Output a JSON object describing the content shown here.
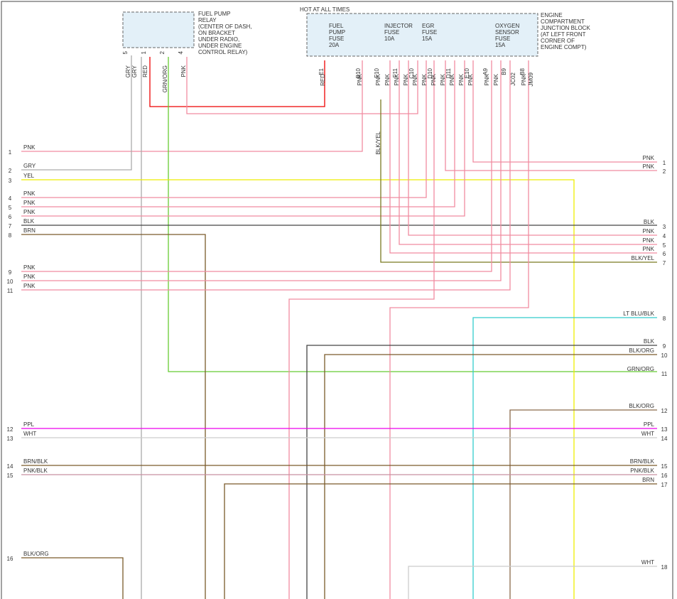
{
  "relay": {
    "lines": [
      "FUEL PUMP",
      "RELAY",
      "(CENTER OF DASH,",
      "ON BRACKET",
      "UNDER RADIO,",
      "UNDER ENGINE",
      "CONTROL RELAY)"
    ],
    "pins": [
      "5",
      "1",
      "2",
      "4"
    ],
    "wires": [
      "GRY",
      "GRY",
      "RED",
      "GRN/ORG",
      "PNK"
    ]
  },
  "junction": {
    "header": "HOT AT ALL TIMES",
    "lines": [
      "ENGINE",
      "COMPARTMENT",
      "JUNCTION BLOCK",
      "(AT LEFT FRONT",
      "CORNER OF",
      "ENGINE COMPT)"
    ],
    "fuses": [
      [
        "FUEL",
        "PUMP",
        "FUSE",
        "20A"
      ],
      [
        "INJECTOR",
        "FUSE",
        "10A"
      ],
      [
        "EGR",
        "FUSE",
        "15A"
      ],
      [
        "OXYGEN",
        "SENSOR",
        "FUSE",
        "15A"
      ]
    ],
    "pins": [
      "E1",
      "B10",
      "F10",
      "F11",
      "C10",
      "D10",
      "D11",
      "E10",
      "A9",
      "B9",
      "B8"
    ],
    "connectors": [
      "JC02",
      "JM09"
    ],
    "wires": [
      "RED",
      "PNK",
      "PNK",
      "PNK",
      "PNK",
      "PNK",
      "PNK",
      "PNK",
      "PNK",
      "PNK",
      "PNK",
      "PNK",
      "PNK",
      "PNK",
      "PNK",
      "PNK"
    ],
    "splice_wire": "BLK/YEL"
  },
  "left": [
    [
      "1",
      "PNK"
    ],
    [
      "2",
      "GRY"
    ],
    [
      "3",
      "YEL"
    ],
    [
      "4",
      "PNK"
    ],
    [
      "5",
      "PNK"
    ],
    [
      "6",
      "PNK"
    ],
    [
      "7",
      "BLK"
    ],
    [
      "8",
      "BRN"
    ],
    [
      "9",
      "PNK"
    ],
    [
      "10",
      "PNK"
    ],
    [
      "11",
      "PNK"
    ],
    [
      "12",
      "PPL"
    ],
    [
      "13",
      "WHT"
    ],
    [
      "14",
      "BRN/BLK"
    ],
    [
      "15",
      "PNK/BLK"
    ],
    [
      "16",
      "BLK/ORG"
    ]
  ],
  "right": [
    [
      "1",
      "PNK"
    ],
    [
      "2",
      "PNK"
    ],
    [
      "3",
      "BLK"
    ],
    [
      "4",
      "PNK"
    ],
    [
      "5",
      "PNK"
    ],
    [
      "6",
      "PNK"
    ],
    [
      "7",
      "BLK/YEL"
    ],
    [
      "8",
      "LT BLU/BLK"
    ],
    [
      "9",
      "BLK"
    ],
    [
      "10",
      "BLK/ORG"
    ],
    [
      "11",
      "GRN/ORG"
    ],
    [
      "12",
      "BLK/ORG"
    ],
    [
      "13",
      "PPL"
    ],
    [
      "14",
      "WHT"
    ],
    [
      "15",
      "BRN/BLK"
    ],
    [
      "16",
      "PNK/BLK"
    ],
    [
      "17",
      "BRN"
    ],
    [
      "18",
      "WHT"
    ]
  ]
}
